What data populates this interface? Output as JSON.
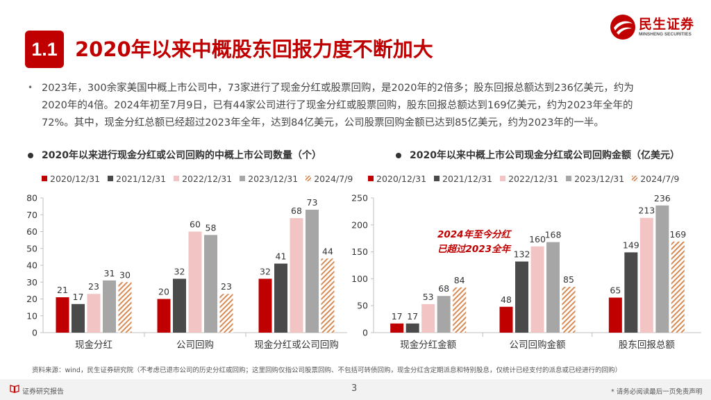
{
  "header": {
    "badge": "1.1",
    "title": "2020年以来中概股东回报力度不断加大",
    "logo_cn": "民生证券",
    "logo_en": "MINSHENG SECURITIES"
  },
  "paragraph": {
    "bullet": "•",
    "lines": [
      "2023年，300余家美国中概上市公司中，73家进行了现金分红或股票回购，是2020年的2倍多；股东回报总额达到236亿美元，约为",
      "2020年的4倍。2024年初至7月9日，已有44家公司进行了现金分红或股票回购，股东回报总额达到169亿美元，约为2023年全年的",
      "72%。其中，现金分红总额已经超过2023年全年，达到84亿美元，公司股票回购金额已达到85亿美元，约为2023年的一半。"
    ]
  },
  "colors": {
    "accent": "#c00000",
    "s2020": "#c00000",
    "s2021": "#4a4a4a",
    "s2022": "#f2c4c4",
    "s2023": "#a6a6a6",
    "s2024": "#d88a54"
  },
  "chart_data": [
    {
      "type": "bar",
      "title": "2020年以来进行现金分红或公司回购的中概上市公司数量（个）",
      "categories": [
        "现金分红",
        "公司回购",
        "现金分红或公司回购"
      ],
      "series": [
        {
          "name": "2020/12/31",
          "values": [
            21,
            20,
            32
          ],
          "color": "#c00000",
          "pattern": "solid"
        },
        {
          "name": "2021/12/31",
          "values": [
            17,
            32,
            41
          ],
          "color": "#4a4a4a",
          "pattern": "solid"
        },
        {
          "name": "2022/12/31",
          "values": [
            23,
            60,
            68
          ],
          "color": "#f2c4c4",
          "pattern": "solid"
        },
        {
          "name": "2023/12/31",
          "values": [
            31,
            58,
            73
          ],
          "color": "#a6a6a6",
          "pattern": "solid"
        },
        {
          "name": "2024/7/9",
          "values": [
            30,
            23,
            44
          ],
          "color": "#d88a54",
          "pattern": "hatch"
        }
      ],
      "ylim": [
        0,
        80
      ],
      "yticks": [
        0,
        10,
        20,
        30,
        40,
        50,
        60,
        70,
        80
      ],
      "grid": false,
      "legend": "top"
    },
    {
      "type": "bar",
      "title": "2020年以来中概上市公司现金分红或公司回购金额（亿美元）",
      "categories": [
        "现金分红金额",
        "公司回购金额",
        "股东回报总额"
      ],
      "series": [
        {
          "name": "2020/12/31",
          "values": [
            17,
            48,
            65
          ],
          "color": "#c00000",
          "pattern": "solid"
        },
        {
          "name": "2021/12/31",
          "values": [
            17,
            132,
            149
          ],
          "color": "#4a4a4a",
          "pattern": "solid"
        },
        {
          "name": "2022/12/31",
          "values": [
            53,
            160,
            213
          ],
          "color": "#f2c4c4",
          "pattern": "solid"
        },
        {
          "name": "2023/12/31",
          "values": [
            68,
            168,
            236
          ],
          "color": "#a6a6a6",
          "pattern": "solid"
        },
        {
          "name": "2024/7/9",
          "values": [
            84,
            85,
            169
          ],
          "color": "#d88a54",
          "pattern": "hatch"
        }
      ],
      "ylim": [
        0,
        250
      ],
      "yticks": [
        0,
        50,
        100,
        150,
        200,
        250
      ],
      "annotation": [
        "2024年至今分红",
        "已超过2023全年"
      ],
      "grid": false,
      "legend": "top"
    }
  ],
  "note": "资料来源：wind，民生证券研究院（不考虑已退市公司的历史分红或回购；这里回购仅指公司股票回购、不包括可转债回购，现金分红含定期派息和特别股息，仅统计已经支付的派息或已经进行的回购）",
  "footer": {
    "label": "证券研究报告",
    "page": "3",
    "disclaimer": "* 请务必阅读最后一页免责声明"
  }
}
